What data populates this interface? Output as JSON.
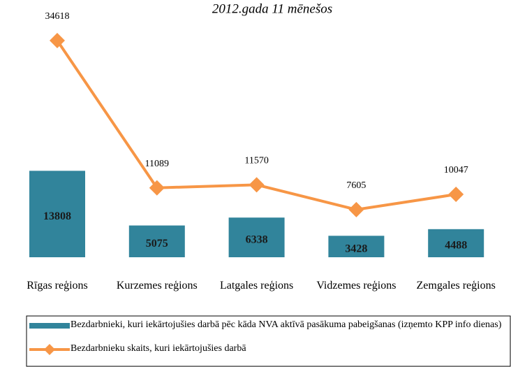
{
  "chart_data": {
    "type": "bar",
    "title": "2012.gada 11 mēnešos",
    "categories": [
      "Rīgas reģions",
      "Kurzemes reģions",
      "Latgales reģions",
      "Vidzemes reģions",
      "Zemgales reģions"
    ],
    "series": [
      {
        "name": "Bezdarbnieki, kuri iekārtojušies darbā pēc kāda NVA aktīvā pasākuma pabeigšanas (izņemto KPP info dienas)",
        "type": "bar",
        "color": "#31849b",
        "values": [
          13808,
          5075,
          6338,
          3428,
          4488
        ]
      },
      {
        "name": "Bezdarbnieku skaits, kuri iekārtojušies darbā",
        "type": "line",
        "color": "#f79646",
        "values": [
          34618,
          11089,
          11570,
          7605,
          10047
        ]
      }
    ]
  }
}
